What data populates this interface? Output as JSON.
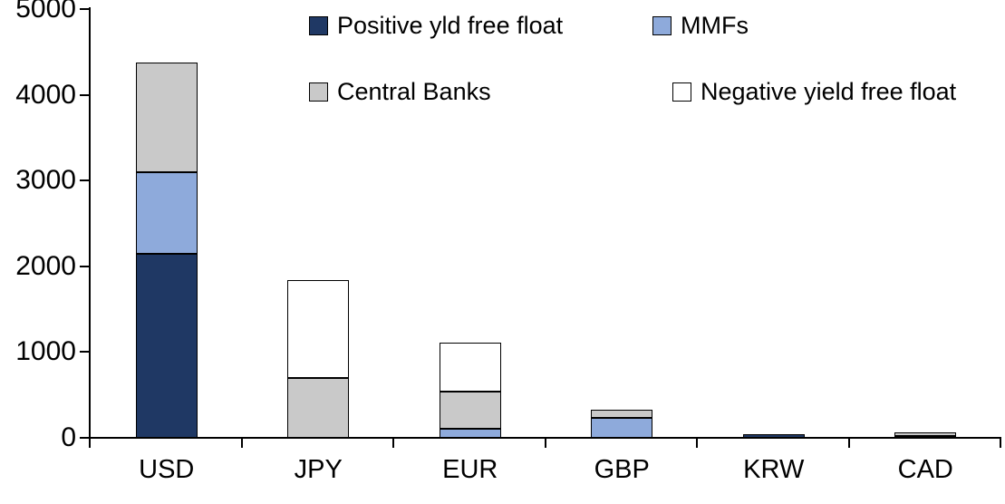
{
  "chart_data": {
    "type": "bar",
    "stacked": true,
    "title": "",
    "xlabel": "",
    "ylabel": "",
    "categories": [
      "USD",
      "JPY",
      "EUR",
      "GBP",
      "KRW",
      "CAD"
    ],
    "series": [
      {
        "name": "Positive yld free float",
        "color": "#1F3864",
        "values": [
          2150,
          0,
          0,
          0,
          45,
          25
        ]
      },
      {
        "name": "MMFs",
        "color": "#8EAADB",
        "values": [
          950,
          0,
          110,
          230,
          0,
          0
        ]
      },
      {
        "name": "Central Banks",
        "color": "#C9C9C9",
        "values": [
          1280,
          700,
          430,
          100,
          0,
          35
        ]
      },
      {
        "name": "Negative yield free float",
        "color": "#FFFFFF",
        "values": [
          0,
          1140,
          570,
          0,
          0,
          0
        ]
      }
    ],
    "totals": [
      4380,
      1840,
      1110,
      330,
      45,
      60
    ],
    "ylim": [
      0,
      5000
    ],
    "yticks": [
      0,
      1000,
      2000,
      3000,
      4000,
      5000
    ],
    "ytick_labels": [
      "0",
      "1000",
      "2000",
      "3000",
      "4000",
      "5000"
    ],
    "grid": false,
    "legend_position": "top",
    "legend_rows": [
      [
        "Positive yld free float",
        "MMFs"
      ],
      [
        "Central Banks",
        "Negative yield free float"
      ]
    ],
    "axis_color": "#000000",
    "bar_border_color": "#000000",
    "background_color": "#FFFFFF"
  }
}
